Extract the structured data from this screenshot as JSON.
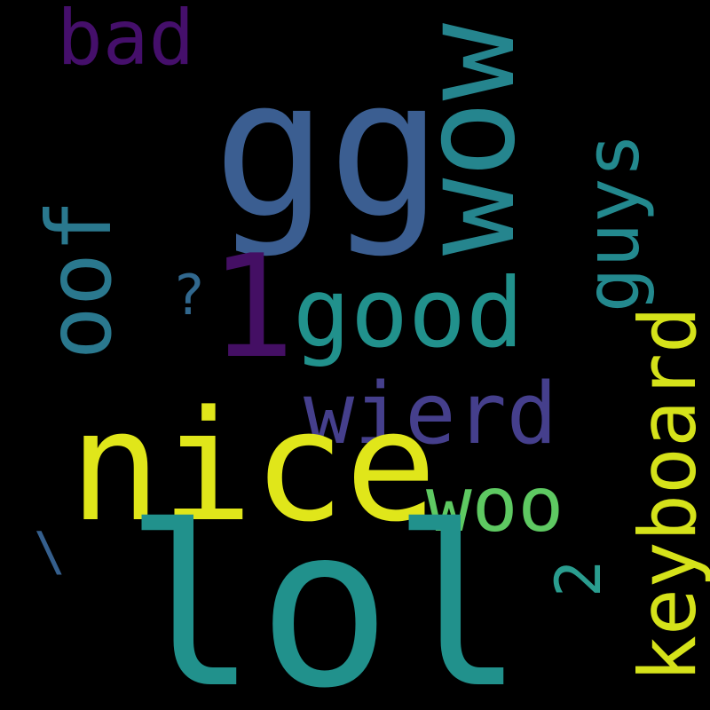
{
  "cloud": {
    "background": "#000000",
    "words": {
      "gg": {
        "text": "gg",
        "color": "#3b5e91"
      },
      "lol": {
        "text": "lol",
        "color": "#21918c"
      },
      "nice": {
        "text": "nice",
        "color": "#e0e61a"
      },
      "wow": {
        "text": "wow",
        "color": "#25858e"
      },
      "good": {
        "text": "good",
        "color": "#21918c"
      },
      "wierd": {
        "text": "wierd",
        "color": "#453f8c"
      },
      "oof": {
        "text": "oof",
        "color": "#2a788e"
      },
      "bad": {
        "text": "bad",
        "color": "#450f6b"
      },
      "one": {
        "text": "1",
        "color": "#440f64"
      },
      "guys": {
        "text": "guys",
        "color": "#23898e"
      },
      "keyboard": {
        "text": "keyboard",
        "color": "#d5e21a"
      },
      "woo": {
        "text": "woo",
        "color": "#5ec962"
      },
      "question": {
        "text": "?",
        "color": "#31688e"
      },
      "two": {
        "text": "2",
        "color": "#2a9d8f"
      },
      "backslash": {
        "text": "\\",
        "color": "#355f8d"
      }
    }
  }
}
